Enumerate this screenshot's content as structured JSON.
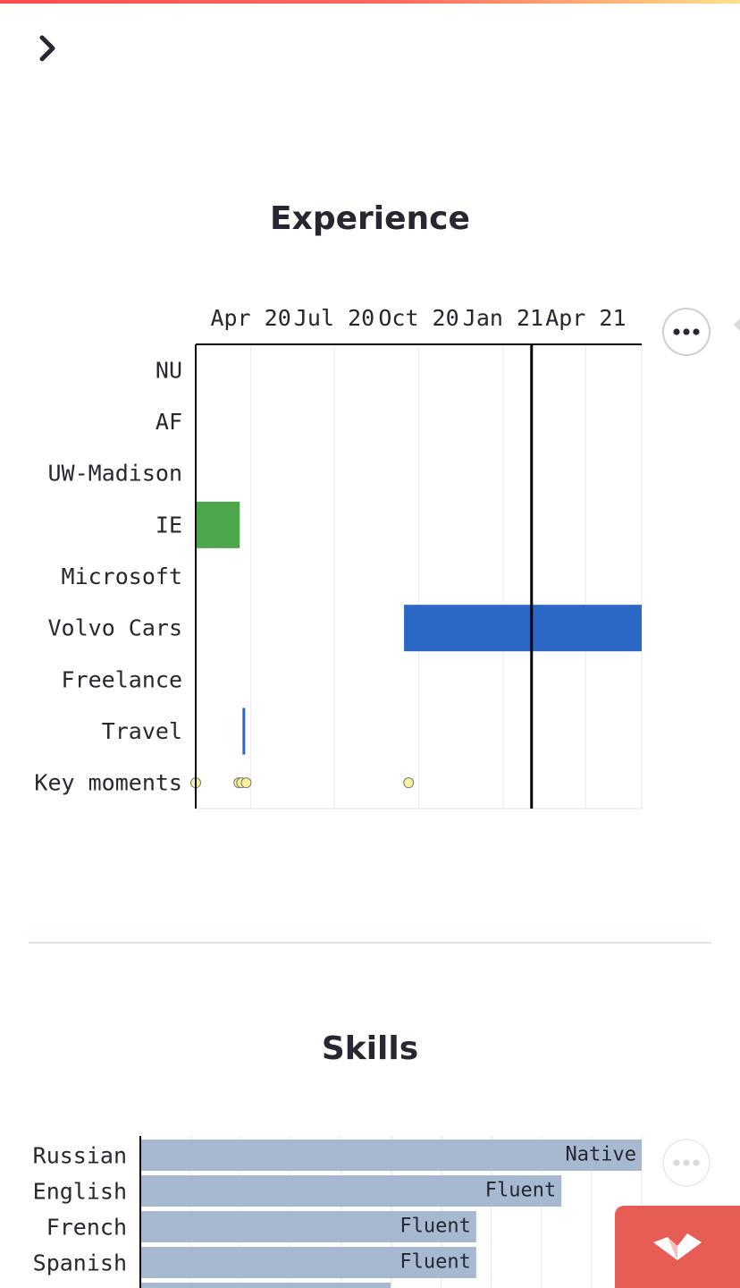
{
  "app": {
    "sidebar_toggle_icon": "chevron-right-icon"
  },
  "experience": {
    "title": "Experience",
    "menu_icon": "more-horizontal-icon"
  },
  "skills": {
    "title": "Skills",
    "menu_icon": "more-horizontal-icon"
  },
  "colors": {
    "accent_stripe_start": "#ff4b4b",
    "accent_stripe_end": "#ffe08a",
    "ie_bar": "#4ca64c",
    "volvo_bar": "#2b67c4",
    "travel_mark": "#2b67c4",
    "key_moment_fill": "#f7f3a0",
    "skill_bar": "#a7b9d0",
    "fab_bg": "#e85c56"
  },
  "chart_data": [
    {
      "type": "gantt",
      "x_axis": {
        "type": "time",
        "ticks": [
          "Apr 20",
          "Jul 20",
          "Oct 20",
          "Jan 21",
          "Apr 21"
        ],
        "range": [
          "2020-02-01",
          "2021-06-01"
        ]
      },
      "categories": [
        "NU",
        "AF",
        "UW-Madison",
        "IE",
        "Microsoft",
        "Volvo Cars",
        "Freelance",
        "Travel",
        "Key moments"
      ],
      "bars": [
        {
          "category": "IE",
          "start": "2020-02-01",
          "end": "2020-03-20",
          "color": "#4ca64c"
        },
        {
          "category": "Volvo Cars",
          "start": "2020-09-15",
          "end": "2021-06-01",
          "color": "#2b67c4"
        },
        {
          "category": "Travel",
          "start": "2020-03-23",
          "end": "2020-03-25",
          "color": "#2b67c4"
        }
      ],
      "points": [
        {
          "category": "Key moments",
          "date": "2020-02-01"
        },
        {
          "category": "Key moments",
          "date": "2020-03-19"
        },
        {
          "category": "Key moments",
          "date": "2020-03-22"
        },
        {
          "category": "Key moments",
          "date": "2020-03-27"
        },
        {
          "category": "Key moments",
          "date": "2020-09-20"
        }
      ],
      "today_line": "2021-02-01",
      "grid": true
    },
    {
      "type": "bar",
      "orientation": "horizontal",
      "categories": [
        "Russian",
        "English",
        "French",
        "Spanish"
      ],
      "values": [
        100,
        84,
        67,
        67
      ],
      "labels": [
        "Native",
        "Fluent",
        "Fluent",
        "Fluent"
      ],
      "xlim": [
        0,
        100
      ],
      "grid": true
    }
  ]
}
